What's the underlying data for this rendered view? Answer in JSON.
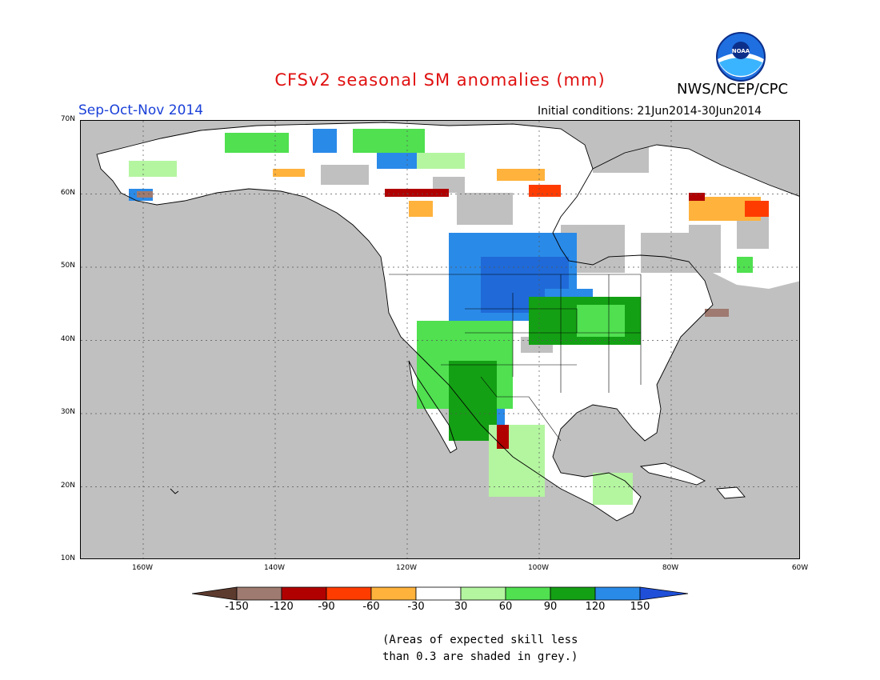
{
  "header": {
    "title": "CFSv2 seasonal SM anomalies (mm)",
    "season": "Sep-Oct-Nov 2014",
    "initial_conditions": "Initial conditions: 21Jun2014-30Jun2014",
    "agency": "NWS/NCEP/CPC",
    "logo_text": "NOAA"
  },
  "axes": {
    "lat_labels": [
      "70N",
      "60N",
      "50N",
      "40N",
      "30N",
      "20N",
      "10N"
    ],
    "lon_labels": [
      "160W",
      "140W",
      "120W",
      "100W",
      "80W",
      "60W"
    ]
  },
  "colorbar": {
    "labels": [
      "-150",
      "-120",
      "-90",
      "-60",
      "-30",
      "30",
      "60",
      "90",
      "120",
      "150"
    ],
    "colors": [
      "#5c3a2e",
      "#9e7a70",
      "#b00000",
      "#ff3c00",
      "#ffb23c",
      "#ffffff",
      "#b4f5a0",
      "#50e050",
      "#14a014",
      "#2a8ae8",
      "#1f4fd8"
    ]
  },
  "note": {
    "line1": "(Areas of expected skill less",
    "line2": "than 0.3 are shaded in grey.)"
  }
}
